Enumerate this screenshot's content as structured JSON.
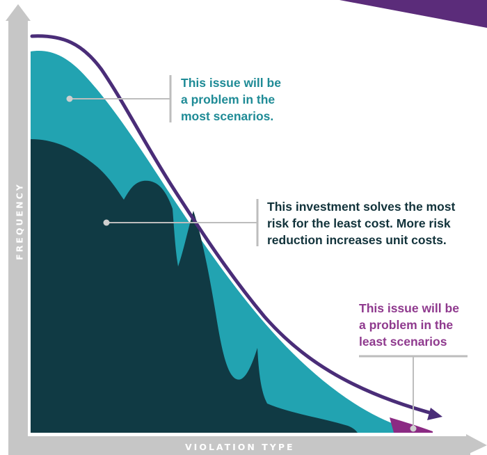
{
  "labels": {
    "most_scenarios": "This issue will be\na problem in the\nmost scenarios.",
    "investment": "This investment solves the most\nrisk for the least cost. More risk\nreduction increases unit costs.",
    "least_scenarios": "This issue will be\na problem in the\nleast scenarios",
    "x_axis": "VIOLATION TYPE",
    "y_axis": "FREQUENCY"
  },
  "colors": {
    "axis": "#c6c6c6",
    "curve_line": "#4a2d78",
    "area_light": "#22a3b1",
    "area_dark": "#103a44",
    "area_tail": "#8b2a83",
    "corner_accent": "#5b2c7a",
    "text_teal": "#1f8b96",
    "text_dark": "#12333b",
    "text_purple": "#8f3a8e",
    "leader": "#bdbdbd",
    "dot": "#cfcfcf"
  }
}
